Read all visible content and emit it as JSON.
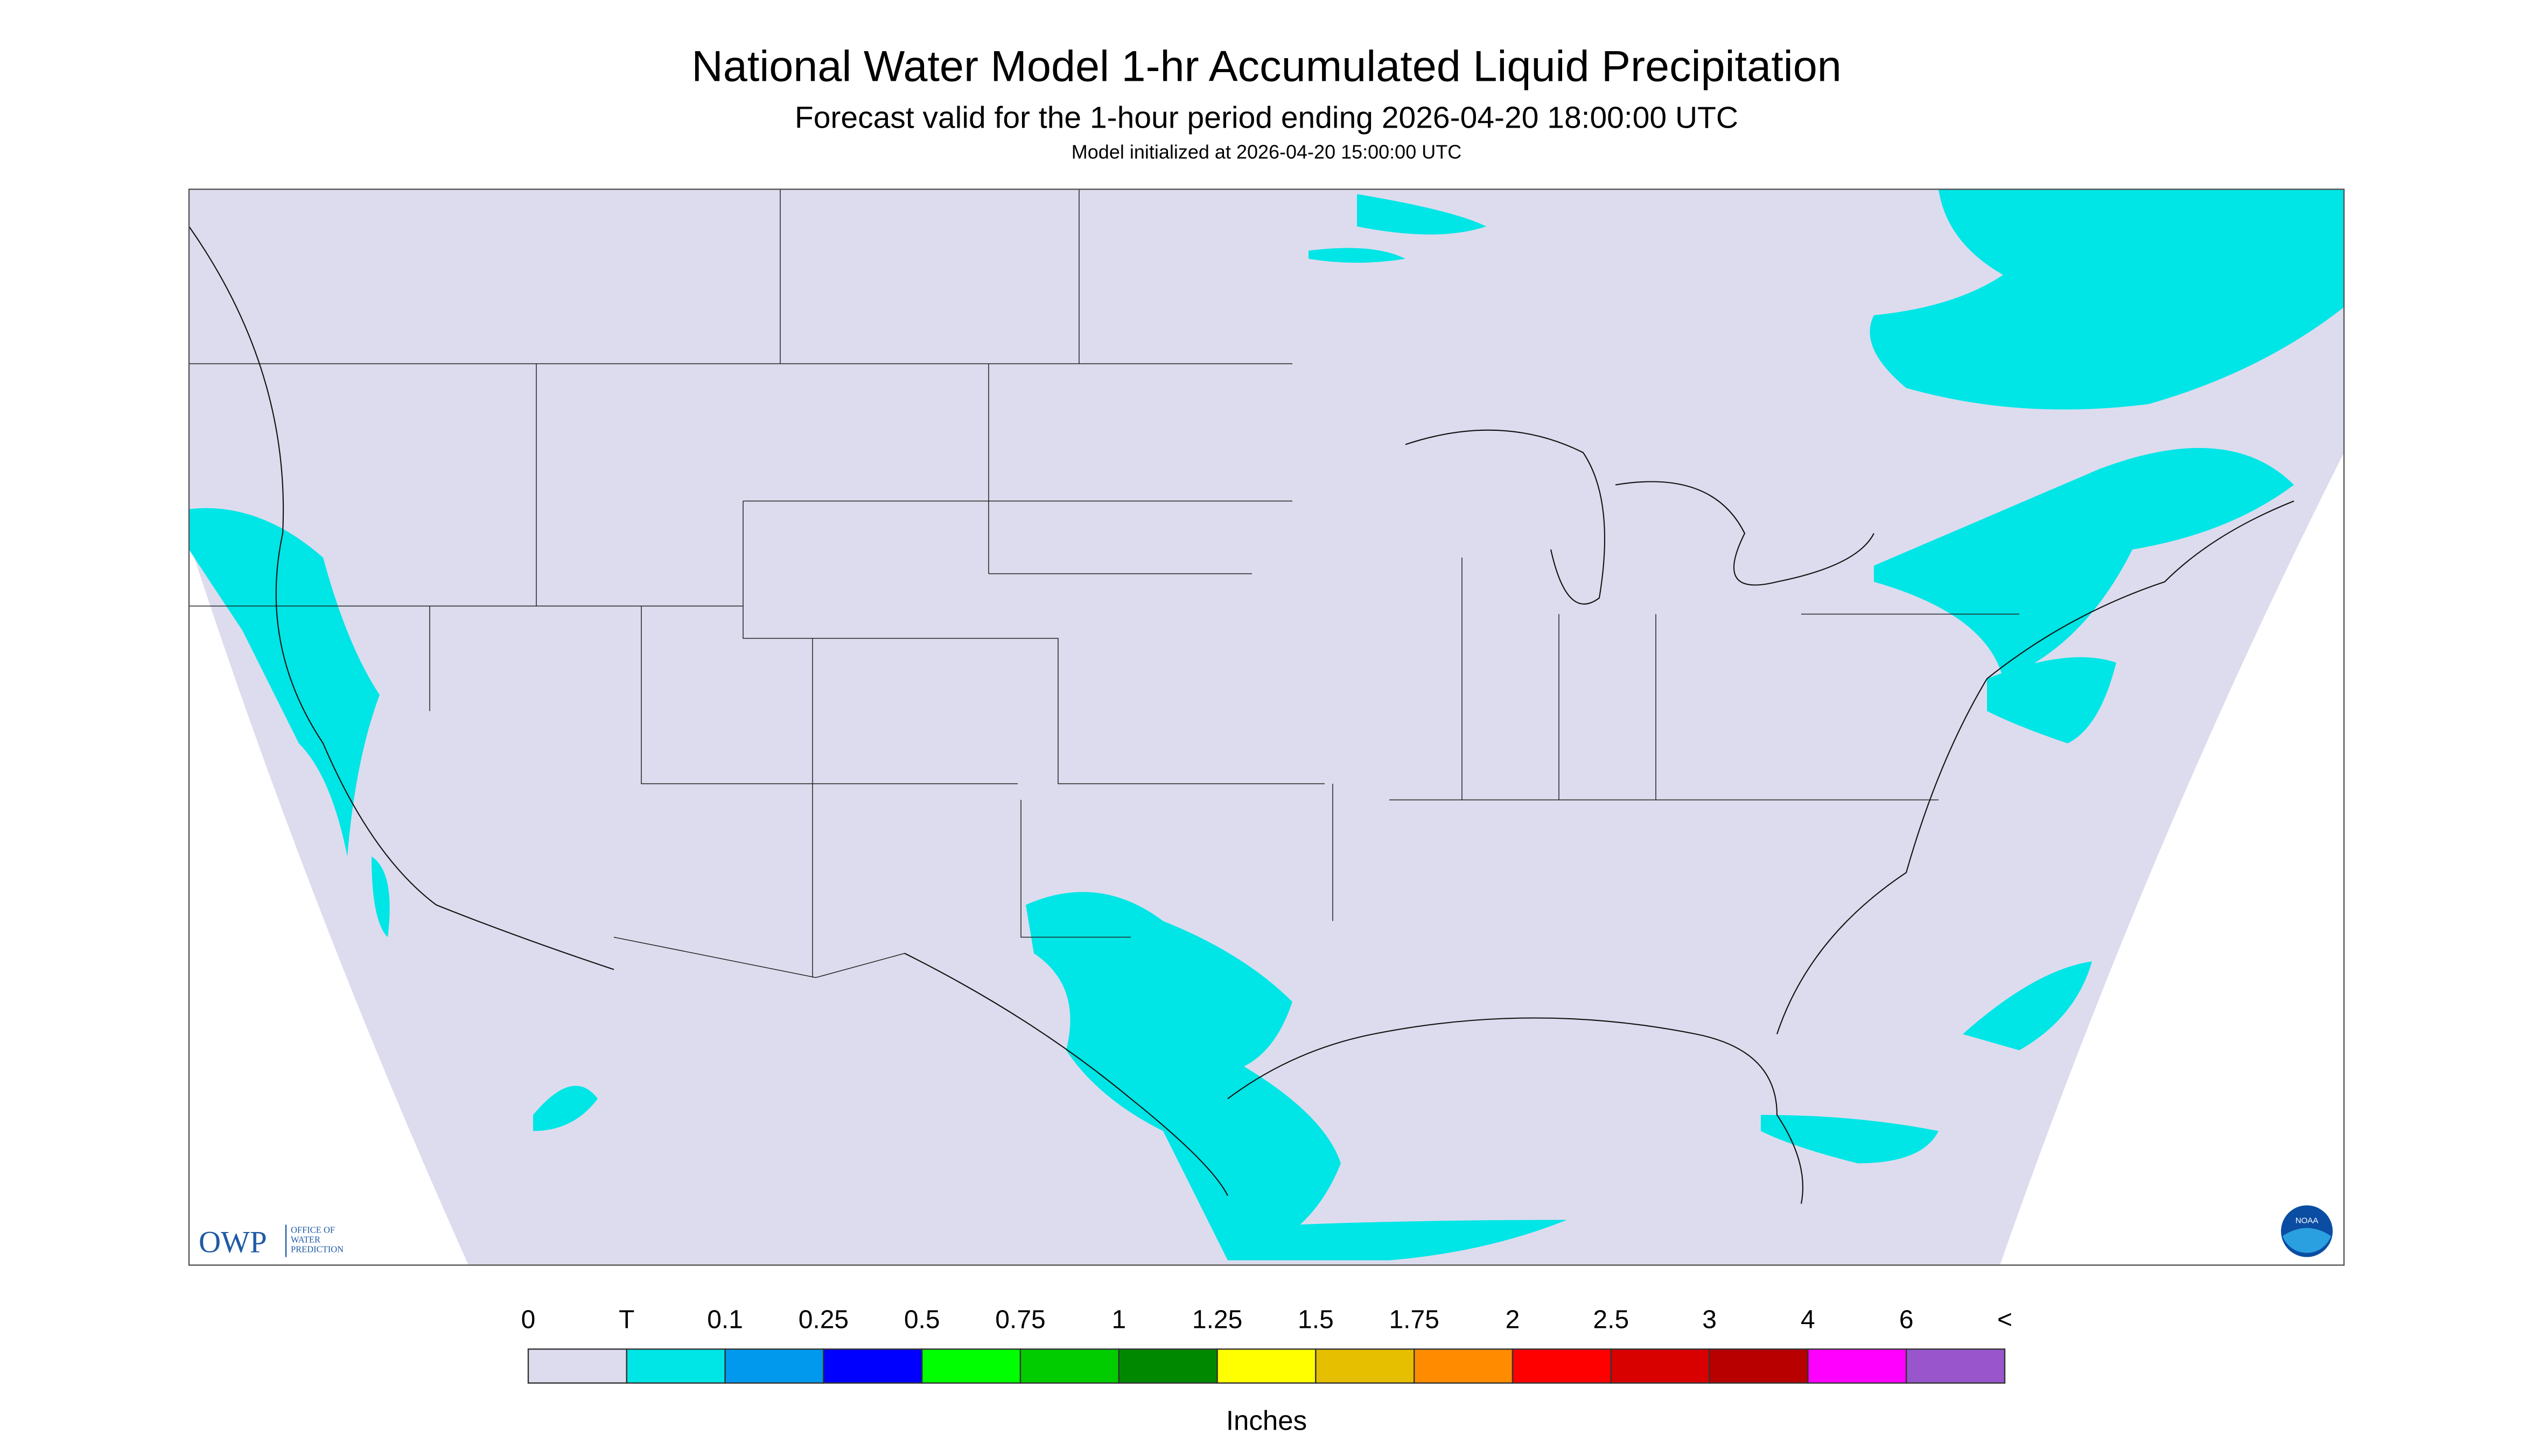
{
  "header": {
    "title": "National Water Model 1-hr Accumulated Liquid Precipitation",
    "subtitle": "Forecast valid for the 1-hour period ending 2026-04-20 18:00:00 UTC",
    "note": "Model initialized at 2026-04-20 15:00:00 UTC"
  },
  "legend": {
    "labels": [
      "0",
      "T",
      "0.1",
      "0.25",
      "0.5",
      "0.75",
      "1",
      "1.25",
      "1.5",
      "1.75",
      "2",
      "2.5",
      "3",
      "4",
      "6",
      "<"
    ],
    "colors": [
      "#dcdcee",
      "#00e5e5",
      "#0099ee",
      "#0000ff",
      "#00ff00",
      "#00cc00",
      "#008800",
      "#ffff00",
      "#e6bf00",
      "#ff8c00",
      "#ff0000",
      "#d90000",
      "#b80000",
      "#ff00ff",
      "#9955cc"
    ],
    "unit": "Inches"
  },
  "logos": {
    "owp": "OWP",
    "owp_text": [
      "OFFICE OF",
      "WATER",
      "PREDICTION"
    ],
    "noaa": "NOAA"
  }
}
